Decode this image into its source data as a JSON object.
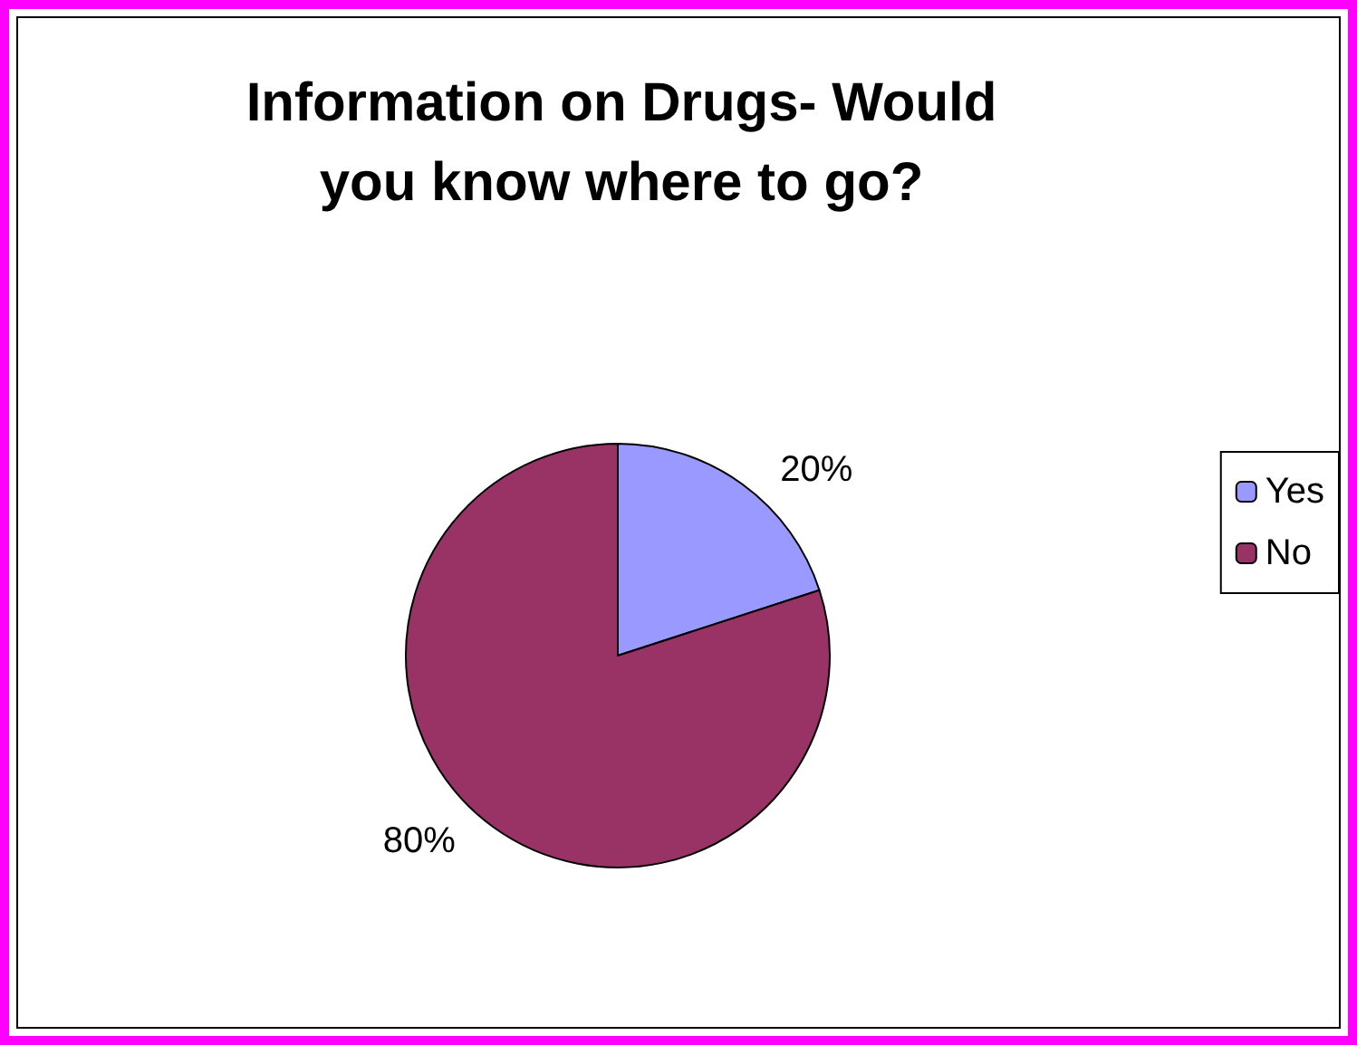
{
  "chart_data": {
    "type": "pie",
    "title": "Information on Drugs- Would\nyou know where to go?",
    "categories": [
      "Yes",
      "No"
    ],
    "values": [
      20,
      80
    ],
    "colors": [
      "#9999ff",
      "#993366"
    ],
    "value_labels": [
      "20%",
      "80%"
    ],
    "legend": "right"
  }
}
